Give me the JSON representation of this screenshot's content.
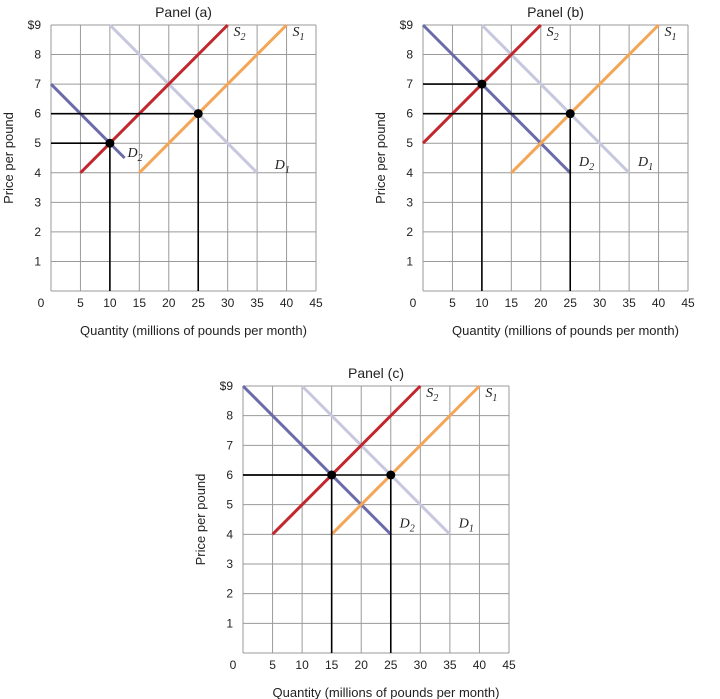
{
  "colors": {
    "grid": "#9a9a9a",
    "s2": "#c1272d",
    "s1": "#f4a556",
    "d2": "#6b6baa",
    "d1": "#c7c7de",
    "point": "#000000"
  },
  "chart_data": [
    {
      "type": "line",
      "title": "Panel (a)",
      "xlabel": "Quantity (millions of pounds per month)",
      "ylabel": "Price per pound",
      "xlim": [
        0,
        45
      ],
      "ylim": [
        0,
        9
      ],
      "x_ticks": [
        "0",
        "5",
        "10",
        "15",
        "20",
        "25",
        "30",
        "35",
        "40",
        "45"
      ],
      "y_ticks": [
        "$9",
        "8",
        "7",
        "6",
        "5",
        "4",
        "3",
        "2",
        "1"
      ],
      "grid": true,
      "series": [
        {
          "name": "D1",
          "label_main": "D",
          "label_sub": "1",
          "color_key": "d1",
          "points": [
            [
              10,
              9
            ],
            [
              35,
              4
            ]
          ],
          "label_at": [
            38,
            4.3
          ]
        },
        {
          "name": "D2",
          "label_main": "D",
          "label_sub": "2",
          "color_key": "d2",
          "points": [
            [
              0,
              7
            ],
            [
              12.5,
              4.5
            ]
          ],
          "label_at": [
            13,
            4.7
          ]
        },
        {
          "name": "S1",
          "label_main": "S",
          "label_sub": "1",
          "color_key": "s1",
          "points": [
            [
              15,
              4
            ],
            [
              40,
              9
            ]
          ],
          "label_at": [
            41,
            8.8
          ]
        },
        {
          "name": "S2",
          "label_main": "S",
          "label_sub": "2",
          "color_key": "s2",
          "points": [
            [
              5,
              4
            ],
            [
              30,
              9
            ]
          ],
          "label_at": [
            31,
            8.8
          ]
        }
      ],
      "equilibria": [
        [
          10,
          5
        ],
        [
          25,
          6
        ]
      ]
    },
    {
      "type": "line",
      "title": "Panel (b)",
      "xlabel": "Quantity (millions of pounds per month)",
      "ylabel": "Price per pound",
      "xlim": [
        0,
        45
      ],
      "ylim": [
        0,
        9
      ],
      "x_ticks": [
        "0",
        "5",
        "10",
        "15",
        "20",
        "25",
        "30",
        "35",
        "40",
        "45"
      ],
      "y_ticks": [
        "$9",
        "8",
        "7",
        "6",
        "5",
        "4",
        "3",
        "2",
        "1"
      ],
      "grid": true,
      "series": [
        {
          "name": "D1",
          "label_main": "D",
          "label_sub": "1",
          "color_key": "d1",
          "points": [
            [
              10,
              9
            ],
            [
              35,
              4
            ]
          ],
          "label_at": [
            36.5,
            4.4
          ]
        },
        {
          "name": "D2",
          "label_main": "D",
          "label_sub": "2",
          "color_key": "d2",
          "points": [
            [
              0,
              9
            ],
            [
              25,
              4
            ]
          ],
          "label_at": [
            26.5,
            4.4
          ]
        },
        {
          "name": "S1",
          "label_main": "S",
          "label_sub": "1",
          "color_key": "s1",
          "points": [
            [
              15,
              4
            ],
            [
              40,
              9
            ]
          ],
          "label_at": [
            41,
            8.8
          ]
        },
        {
          "name": "S2",
          "label_main": "S",
          "label_sub": "2",
          "color_key": "s2",
          "points": [
            [
              0,
              5
            ],
            [
              20,
              9
            ]
          ],
          "label_at": [
            21,
            8.8
          ]
        }
      ],
      "equilibria": [
        [
          10,
          7
        ],
        [
          25,
          6
        ]
      ]
    },
    {
      "type": "line",
      "title": "Panel (c)",
      "xlabel": "Quantity (millions of pounds per month)",
      "ylabel": "Price per pound",
      "xlim": [
        0,
        45
      ],
      "ylim": [
        0,
        9
      ],
      "x_ticks": [
        "0",
        "5",
        "10",
        "15",
        "20",
        "25",
        "30",
        "35",
        "40",
        "45"
      ],
      "y_ticks": [
        "$9",
        "8",
        "7",
        "6",
        "5",
        "4",
        "3",
        "2",
        "1"
      ],
      "grid": true,
      "series": [
        {
          "name": "D1",
          "label_main": "D",
          "label_sub": "1",
          "color_key": "d1",
          "points": [
            [
              10,
              9
            ],
            [
              35,
              4
            ]
          ],
          "label_at": [
            36.5,
            4.4
          ]
        },
        {
          "name": "D2",
          "label_main": "D",
          "label_sub": "2",
          "color_key": "d2",
          "points": [
            [
              0,
              9
            ],
            [
              25,
              4
            ]
          ],
          "label_at": [
            26.5,
            4.4
          ]
        },
        {
          "name": "S1",
          "label_main": "S",
          "label_sub": "1",
          "color_key": "s1",
          "points": [
            [
              15,
              4
            ],
            [
              40,
              9
            ]
          ],
          "label_at": [
            41,
            8.8
          ]
        },
        {
          "name": "S2",
          "label_main": "S",
          "label_sub": "2",
          "color_key": "s2",
          "points": [
            [
              5,
              4
            ],
            [
              30,
              9
            ]
          ],
          "label_at": [
            31,
            8.8
          ]
        }
      ],
      "equilibria": [
        [
          15,
          6
        ],
        [
          25,
          6
        ]
      ]
    }
  ]
}
